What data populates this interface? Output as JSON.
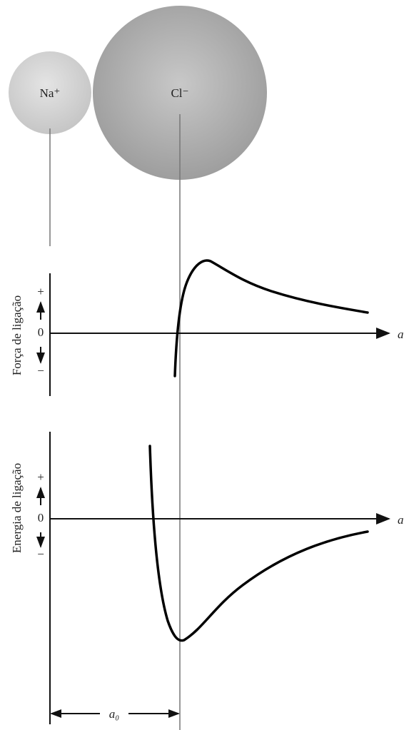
{
  "atoms": {
    "sodium": "Na⁺",
    "chlorine": "Cl⁻"
  },
  "force_plot": {
    "y_label": "Força de ligação",
    "plus": "+",
    "zero": "0",
    "minus": "−",
    "x_label": "a"
  },
  "energy_plot": {
    "y_label": "Energia de ligação",
    "plus": "+",
    "zero": "0",
    "minus": "−",
    "x_label": "a"
  },
  "spacing_label": "a₀"
}
